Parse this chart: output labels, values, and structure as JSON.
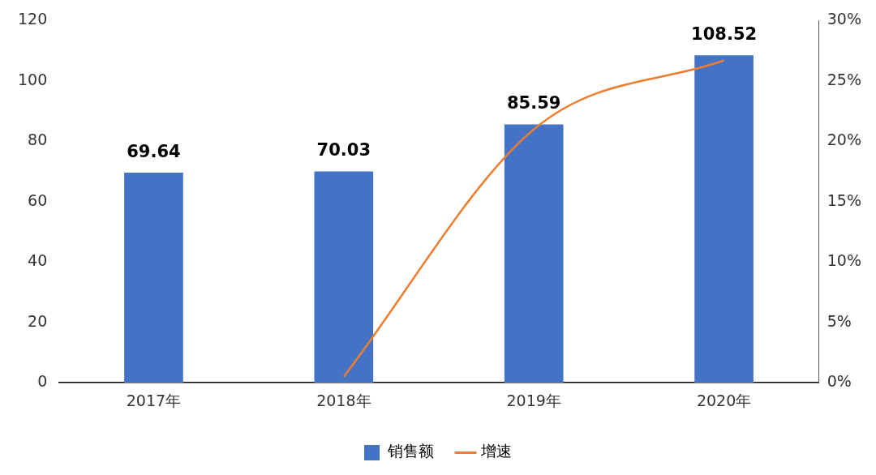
{
  "chart_data": {
    "type": "bar",
    "categories": [
      "2017年",
      "2018年",
      "2019年",
      "2020年"
    ],
    "series": [
      {
        "name": "销售额",
        "color": "#4472c4",
        "values": [
          69.64,
          70.03,
          85.59,
          108.52
        ],
        "value_labels": [
          "69.64",
          "70.03",
          "85.59",
          "108.52"
        ]
      },
      {
        "name": "增速",
        "type": "line",
        "axis": "y2",
        "color": "#ed7d31",
        "values": [
          null,
          0.5,
          21,
          26.7
        ],
        "marker": "none"
      }
    ],
    "ylim": [
      0,
      120
    ],
    "yticks": [
      0,
      20,
      40,
      60,
      80,
      100,
      120
    ],
    "y2lim": [
      0,
      30
    ],
    "y2ticks": [
      {
        "value": 0,
        "label": "0%"
      },
      {
        "value": 5,
        "label": "5%"
      },
      {
        "value": 10,
        "label": "10%"
      },
      {
        "value": 15,
        "label": "15%"
      },
      {
        "value": 20,
        "label": "20%"
      },
      {
        "value": 25,
        "label": "25%"
      },
      {
        "value": 30,
        "label": "30%"
      }
    ],
    "grid": false,
    "legend": "bottom"
  }
}
